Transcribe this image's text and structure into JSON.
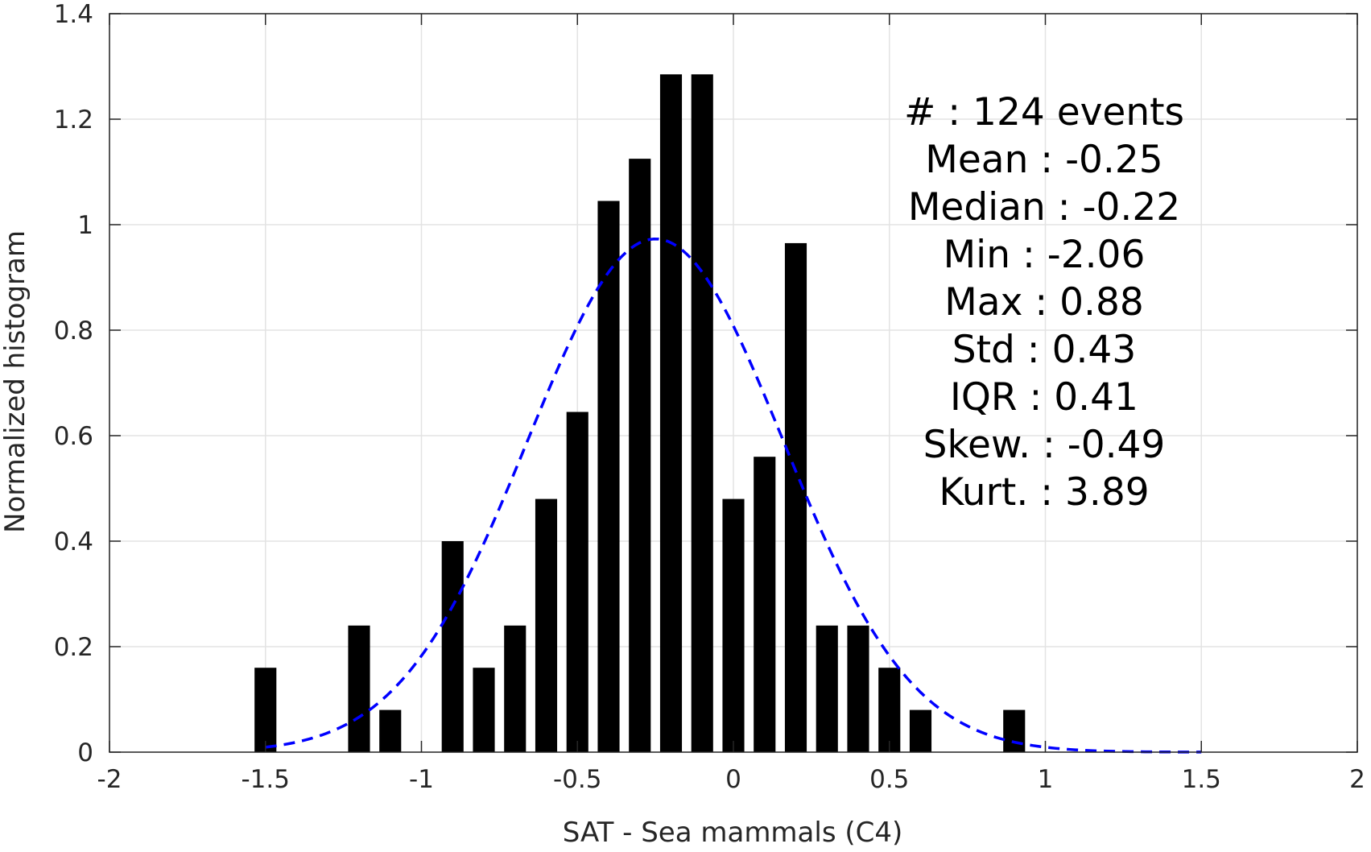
{
  "chart_data": {
    "type": "bar",
    "xlabel": "SAT - Sea mammals (C4)",
    "ylabel": "Normalized histogram",
    "xlim": [
      -2,
      2
    ],
    "ylim": [
      0,
      1.4
    ],
    "x_ticks": [
      "-2",
      "-1.5",
      "-1",
      "-0.5",
      "0",
      "0.5",
      "1",
      "1.5",
      "2"
    ],
    "y_ticks": [
      "0",
      "0.2",
      "0.4",
      "0.6",
      "0.8",
      "1",
      "1.2",
      "1.4"
    ],
    "grid": true,
    "bin_width": 0.1,
    "bar_width_fraction": 0.7,
    "bar_color": "#000000",
    "bars": [
      {
        "x": -1.5,
        "y": 0.16
      },
      {
        "x": -1.2,
        "y": 0.24
      },
      {
        "x": -1.1,
        "y": 0.08
      },
      {
        "x": -0.9,
        "y": 0.4
      },
      {
        "x": -0.8,
        "y": 0.16
      },
      {
        "x": -0.7,
        "y": 0.24
      },
      {
        "x": -0.6,
        "y": 0.48
      },
      {
        "x": -0.5,
        "y": 0.645
      },
      {
        "x": -0.4,
        "y": 1.045
      },
      {
        "x": -0.3,
        "y": 1.125
      },
      {
        "x": -0.2,
        "y": 1.285
      },
      {
        "x": -0.1,
        "y": 1.285
      },
      {
        "x": 0.0,
        "y": 0.48
      },
      {
        "x": 0.1,
        "y": 0.56
      },
      {
        "x": 0.2,
        "y": 0.965
      },
      {
        "x": 0.3,
        "y": 0.24
      },
      {
        "x": 0.4,
        "y": 0.24
      },
      {
        "x": 0.5,
        "y": 0.16
      },
      {
        "x": 0.6,
        "y": 0.08
      },
      {
        "x": 0.9,
        "y": 0.08
      }
    ],
    "fit_curve": {
      "type": "normal",
      "mean": -0.25,
      "std": 0.41,
      "x_range": [
        -1.5,
        1.5
      ],
      "color": "#0000ff",
      "style": "dashed"
    },
    "stats": [
      {
        "label": "#  ",
        "value": "124 events"
      },
      {
        "label": "Mean",
        "value": "-0.25"
      },
      {
        "label": "Median",
        "value": "-0.22"
      },
      {
        "label": "Min",
        "value": "-2.06"
      },
      {
        "label": "Max",
        "value": "0.88"
      },
      {
        "label": "Std",
        "value": "0.43"
      },
      {
        "label": "IQR",
        "value": "0.41"
      },
      {
        "label": "Skew.",
        "value": "-0.49"
      },
      {
        "label": "Kurt.",
        "value": "3.89"
      }
    ]
  }
}
